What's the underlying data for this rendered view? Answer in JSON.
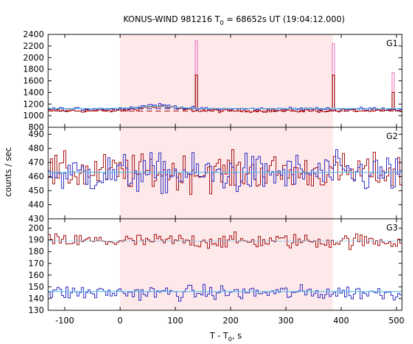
{
  "chart_data": {
    "type": "line",
    "title_prefix": "KONUS-WIND 981216 T",
    "title_sub": "0",
    "title_suffix": " = 68652s UT (19:04:12.000)",
    "xlabel_prefix": "T - T",
    "xlabel_sub": "0",
    "xlabel_suffix": ", s",
    "ylabel": "counts / sec",
    "xlim": [
      -130,
      510
    ],
    "xticks": [
      -100,
      0,
      100,
      200,
      300,
      400,
      500
    ],
    "bin_width": 4,
    "shaded_interval": [
      0,
      385
    ],
    "colors": {
      "red": "#a00000",
      "blue": "#2020c0",
      "pink": "#ee66bb",
      "fit": "#60c0e8",
      "shade": "#fde8ea",
      "dash_red": "#aa0000",
      "dash_blue": "#1a1aa0"
    },
    "panels": [
      {
        "label": "G1",
        "ylim": [
          800,
          2400
        ],
        "yticks": [
          800,
          1000,
          1200,
          1400,
          1600,
          1800,
          2000,
          2200,
          2400
        ],
        "base_red": 1085,
        "base_blue": 1115,
        "noise_red": 22,
        "noise_blue": 22,
        "fit_level": 1125,
        "dash_red_level": 1080,
        "dash_blue_level": 1120,
        "bump": {
          "center": 65,
          "width": 90,
          "amp": 70
        },
        "spikes": [
          {
            "x": 136,
            "red": 1700,
            "pink": 2290
          },
          {
            "x": 384,
            "red": 1700,
            "pink": 2240
          },
          {
            "x": 492,
            "red": 1400,
            "pink": 1740
          }
        ]
      },
      {
        "label": "G2",
        "ylim": [
          430,
          495
        ],
        "yticks": [
          430,
          440,
          450,
          460,
          470,
          480,
          490
        ],
        "base_red": 463,
        "base_blue": 462,
        "noise_red": 9,
        "noise_blue": 10,
        "fit_level": 463
      },
      {
        "label": "G3",
        "ylim": [
          130,
          208
        ],
        "yticks": [
          130,
          140,
          150,
          160,
          170,
          180,
          190,
          200
        ],
        "base_red": 189,
        "base_blue": 145,
        "noise_red": 4.5,
        "noise_blue": 4.5,
        "fit_level": 146,
        "fit_level_red": 189
      }
    ]
  }
}
